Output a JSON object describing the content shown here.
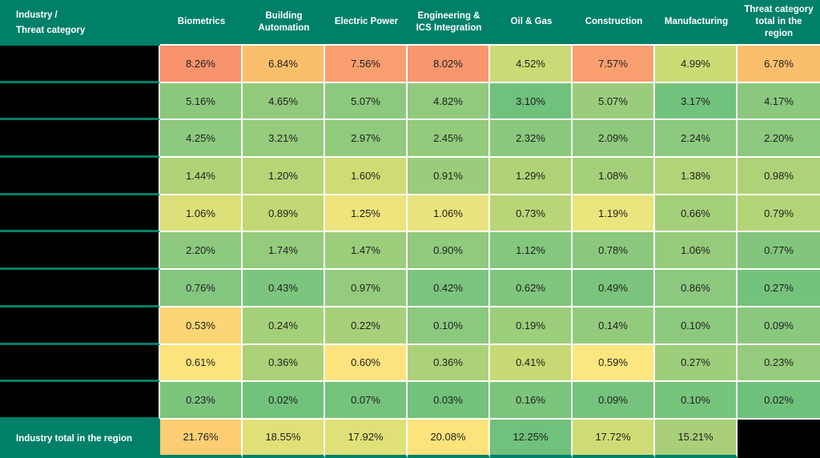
{
  "colors": {
    "header_bg": "#008069",
    "header_text": "#FFFFFF",
    "grid_line": "#FFFFFF",
    "redacted_cell": "#000000",
    "cell_text": "#1F1F1F"
  },
  "table": {
    "header": {
      "corner_label_line1": "Industry /",
      "corner_label_line2": "Threat category",
      "columns": [
        "Biometrics",
        "Building Automation",
        "Electric Power",
        "Engineering & ICS Integration",
        "Oil & Gas",
        "Construction",
        "Manufacturing",
        "Threat category total in the region"
      ]
    },
    "footer_label": "Industry total in the region"
  },
  "chart_data": {
    "type": "heatmap",
    "unit": "%",
    "columns": [
      "Biometrics",
      "Building Automation",
      "Electric Power",
      "Engineering & ICS Integration",
      "Oil & Gas",
      "Construction",
      "Manufacturing",
      "Threat category total in the region"
    ],
    "row_labels_redacted": true,
    "row_labels": [
      "",
      "",
      "",
      "",
      "",
      "",
      "",
      "",
      "",
      ""
    ],
    "rows": [
      {
        "values": [
          8.26,
          6.84,
          7.56,
          8.02,
          4.52,
          7.57,
          4.99,
          6.78
        ],
        "cell_colors": [
          "#F8936D",
          "#FBBF6C",
          "#F99F70",
          "#F8966E",
          "#CBDA74",
          "#F99F70",
          "#CDDB75",
          "#FBBE6D"
        ]
      },
      {
        "values": [
          5.16,
          4.65,
          5.07,
          4.82,
          3.1,
          5.07,
          3.17,
          4.17
        ],
        "cell_colors": [
          "#8BC87D",
          "#92CA7D",
          "#8CC97E",
          "#90CA7D",
          "#6FC17C",
          "#9ACD7B",
          "#71C27C",
          "#89C87D"
        ]
      },
      {
        "values": [
          4.25,
          3.21,
          2.97,
          2.45,
          2.32,
          2.09,
          2.24,
          2.2
        ],
        "cell_colors": [
          "#8DC97E",
          "#96CB7C",
          "#8FCA7D",
          "#93CB7C",
          "#89C87D",
          "#8EC97D",
          "#8CC97E",
          "#8CC97E"
        ]
      },
      {
        "values": [
          1.44,
          1.2,
          1.6,
          0.91,
          1.29,
          1.08,
          1.38,
          0.98
        ],
        "cell_colors": [
          "#B0D377",
          "#B7D476",
          "#D0DC73",
          "#9ACD7B",
          "#AFD277",
          "#A5D07A",
          "#B2D378",
          "#AED277"
        ]
      },
      {
        "values": [
          1.06,
          0.89,
          1.25,
          1.06,
          0.73,
          1.19,
          0.66,
          0.79
        ],
        "cell_colors": [
          "#DCE079",
          "#C2D874",
          "#EEE37D",
          "#EAE47E",
          "#B9D577",
          "#ECE47C",
          "#A5D07A",
          "#B4D478"
        ]
      },
      {
        "values": [
          2.2,
          1.74,
          1.47,
          0.9,
          1.12,
          0.78,
          1.06,
          0.77
        ],
        "cell_colors": [
          "#8DC97E",
          "#94CB7C",
          "#9CCD7B",
          "#8FCA7D",
          "#84C77E",
          "#8BC87D",
          "#96CB7C",
          "#82C67E"
        ]
      },
      {
        "values": [
          0.76,
          0.43,
          0.97,
          0.42,
          0.62,
          0.49,
          0.86,
          0.27
        ],
        "cell_colors": [
          "#83C67E",
          "#7CC57E",
          "#95CB7C",
          "#7CC57E",
          "#80C57E",
          "#7BC47D",
          "#8CC97E",
          "#74C37C"
        ]
      },
      {
        "values": [
          0.53,
          0.24,
          0.22,
          0.1,
          0.19,
          0.14,
          0.1,
          0.09
        ],
        "cell_colors": [
          "#FCD576",
          "#A5D07A",
          "#A7D07A",
          "#8BC97E",
          "#9CCE7B",
          "#93CB7C",
          "#8CC97E",
          "#8AC87D"
        ]
      },
      {
        "values": [
          0.61,
          0.36,
          0.6,
          0.36,
          0.41,
          0.59,
          0.27,
          0.23
        ],
        "cell_colors": [
          "#FCE37C",
          "#ACD178",
          "#FCE37D",
          "#ABD178",
          "#C6D973",
          "#FCE67F",
          "#9DCE7B",
          "#95CB7C"
        ]
      },
      {
        "values": [
          0.23,
          0.02,
          0.07,
          0.03,
          0.16,
          0.09,
          0.1,
          0.02
        ],
        "cell_colors": [
          "#7CC57D",
          "#71C27B",
          "#76C37C",
          "#72C27B",
          "#7CC57D",
          "#75C37C",
          "#77C47C",
          "#6EC17B"
        ]
      }
    ],
    "footer": {
      "label": "Industry total in the region",
      "values": [
        21.76,
        18.55,
        17.92,
        20.08,
        12.25,
        17.72,
        15.21
      ],
      "cell_colors": [
        "#FCCD72",
        "#DFE078",
        "#DFE078",
        "#FDE37C",
        "#6FC17C",
        "#CFDC75",
        "#A9D079"
      ],
      "last_cell": "redacted-black"
    }
  }
}
